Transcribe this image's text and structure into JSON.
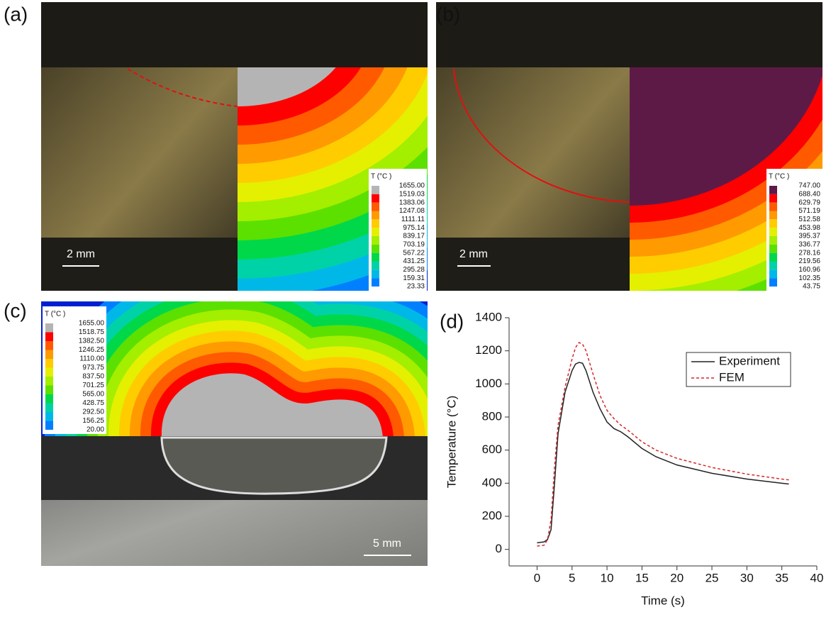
{
  "panels": {
    "a": {
      "label": "(a)",
      "legend_title": "T (°C )",
      "legend_values": [
        "1655.00",
        "1519.03",
        "1383.06",
        "1247.08",
        "1111.11",
        "975.14",
        "839.17",
        "703.19",
        "567.22",
        "431.25",
        "295.28",
        "159.31",
        "23.33"
      ],
      "scale_bar": "2 mm"
    },
    "b": {
      "label": "(b)",
      "legend_title": "T (°C )",
      "legend_values": [
        "747.00",
        "688.40",
        "629.79",
        "571.19",
        "512.58",
        "453.98",
        "395.37",
        "336.77",
        "278.16",
        "219.56",
        "160.96",
        "102.35",
        "43.75"
      ],
      "scale_bar": "2 mm"
    },
    "c": {
      "label": "(c)",
      "legend_title": "T (°C )",
      "legend_values": [
        "1655.00",
        "1518.75",
        "1382.50",
        "1246.25",
        "1110.00",
        "973.75",
        "837.50",
        "701.25",
        "565.00",
        "428.75",
        "292.50",
        "156.25",
        "20.00"
      ],
      "scale_bar": "5 mm"
    },
    "d": {
      "label": "(d)"
    }
  },
  "chart_data": {
    "type": "line",
    "x_label": "Time (s)",
    "y_label": "Temperature (°C)",
    "xlim": [
      -4,
      40
    ],
    "ylim": [
      -100,
      1400
    ],
    "xticks": [
      0,
      5,
      10,
      15,
      20,
      25,
      30,
      35,
      40
    ],
    "yticks": [
      0,
      200,
      400,
      600,
      800,
      1000,
      1200,
      1400
    ],
    "legend": "upper right",
    "x": [
      0,
      1,
      1.5,
      2,
      2.5,
      3,
      4,
      5,
      5.5,
      6,
      6.5,
      7,
      8,
      9,
      10,
      11,
      12,
      13,
      15,
      17,
      20,
      25,
      30,
      35,
      36
    ],
    "series": [
      {
        "name": "Experiment",
        "color": "#222222",
        "dash": "none",
        "values": [
          40,
          45,
          60,
          120,
          400,
          700,
          950,
          1080,
          1120,
          1130,
          1125,
          1080,
          950,
          850,
          770,
          730,
          710,
          680,
          610,
          560,
          510,
          460,
          425,
          400,
          395
        ]
      },
      {
        "name": "FEM",
        "color": "#d62728",
        "dash": "4 3",
        "values": [
          20,
          25,
          60,
          180,
          500,
          750,
          980,
          1150,
          1220,
          1250,
          1240,
          1200,
          1060,
          930,
          840,
          790,
          750,
          720,
          650,
          600,
          550,
          495,
          455,
          425,
          420
        ]
      }
    ]
  }
}
